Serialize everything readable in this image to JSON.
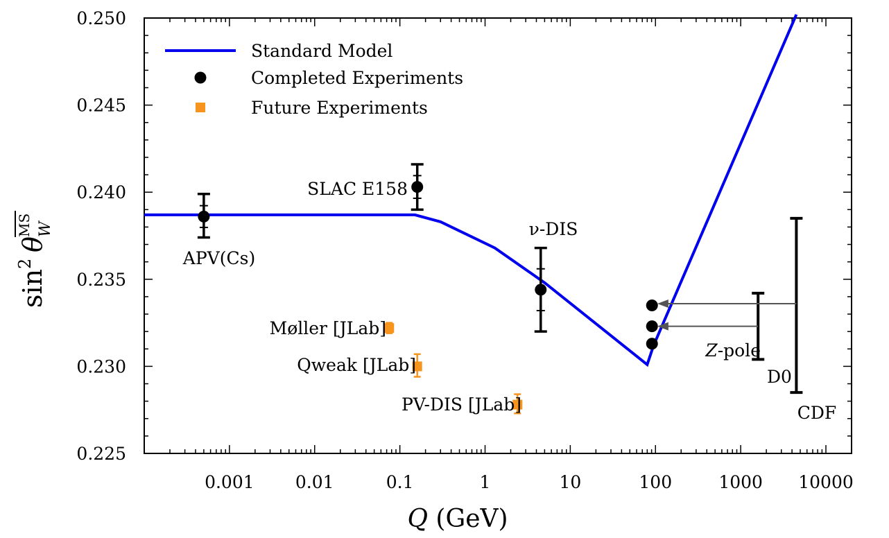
{
  "chart_data": {
    "type": "scatter",
    "xscale": "log",
    "xlim": [
      0.0001,
      20000
    ],
    "ylim": [
      0.225,
      0.25
    ],
    "grid": false,
    "legend_placement": "top-left",
    "xlabel": {
      "var": "Q",
      "unit": "(GeV)"
    },
    "ylabel": {
      "main": "sin",
      "sup": "2",
      "theta": "θ",
      "sub": "W",
      "scheme": "MS"
    },
    "xticks": [
      {
        "value": 0.001,
        "label": "0.001"
      },
      {
        "value": 0.01,
        "label": "0.01"
      },
      {
        "value": 0.1,
        "label": "0.1"
      },
      {
        "value": 1,
        "label": "1"
      },
      {
        "value": 10,
        "label": "10"
      },
      {
        "value": 100,
        "label": "100"
      },
      {
        "value": 1000,
        "label": "1000"
      },
      {
        "value": 10000,
        "label": "10000"
      }
    ],
    "yticks": [
      {
        "value": 0.225,
        "label": "0.225"
      },
      {
        "value": 0.23,
        "label": "0.230"
      },
      {
        "value": 0.235,
        "label": "0.235"
      },
      {
        "value": 0.24,
        "label": "0.240"
      },
      {
        "value": 0.245,
        "label": "0.245"
      },
      {
        "value": 0.25,
        "label": "0.250"
      }
    ],
    "legend": [
      {
        "label": "Standard Model",
        "kind": "line",
        "color": "#0000ee"
      },
      {
        "label": "Completed Experiments",
        "kind": "dot",
        "color": "#000000"
      },
      {
        "label": "Future Experiments",
        "kind": "square",
        "color": "#f7941d"
      }
    ],
    "standard_model": {
      "name": "Standard Model",
      "color": "#0000ee",
      "x": [
        0.0001,
        0.15,
        0.3,
        1.3,
        5,
        80,
        95,
        4500
      ],
      "y": [
        0.2387,
        0.2387,
        0.2383,
        0.2368,
        0.2348,
        0.2301,
        0.2312,
        0.2502
      ]
    },
    "completed": [
      {
        "name": "APV(Cs)",
        "x": 0.0005,
        "y": 0.2386,
        "ylo": 0.2374,
        "yhi": 0.2399
      },
      {
        "name": "SLAC E158",
        "x": 0.16,
        "y": 0.2403,
        "ylo": 0.239,
        "yhi": 0.2416
      },
      {
        "name": "ν-DIS",
        "x": 4.5,
        "y": 0.2344,
        "ylo": 0.232,
        "yhi": 0.2368
      },
      {
        "name": "Z-pole",
        "x": 91,
        "y": 0.2335
      },
      {
        "name": "Z-pole",
        "x": 91,
        "y": 0.2323
      },
      {
        "name": "Z-pole",
        "x": 91,
        "y": 0.2313
      }
    ],
    "future": [
      {
        "name": "Møller [JLab]",
        "x": 0.075,
        "y": 0.2322,
        "ylo": 0.2319,
        "yhi": 0.2325
      },
      {
        "name": "Qweak [JLab]",
        "x": 0.16,
        "y": 0.23,
        "ylo": 0.2294,
        "yhi": 0.2307
      },
      {
        "name": "PV-DIS [JLab]",
        "x": 2.4,
        "y": 0.2278,
        "ylo": 0.2273,
        "yhi": 0.2284
      }
    ],
    "hadron_colliders": [
      {
        "name": "D0",
        "x": 1600,
        "ylo": 0.2304,
        "yhi": 0.2342
      },
      {
        "name": "CDF",
        "x": 4500,
        "ylo": 0.2285,
        "yhi": 0.2385
      }
    ],
    "arrows": [
      {
        "from_x": 4500,
        "to_x": 105,
        "y": 0.2336
      },
      {
        "from_x": 1600,
        "to_x": 105,
        "y": 0.2323
      }
    ],
    "annotations": [
      {
        "text": "APV(Cs)",
        "target": "APV(Cs)"
      },
      {
        "text": "SLAC E158",
        "target": "SLAC E158"
      },
      {
        "text": "ν-DIS",
        "target": "ν-DIS"
      },
      {
        "text": "Møller [JLab]",
        "target": "Møller [JLab]"
      },
      {
        "text": "Qweak [JLab]",
        "target": "Qweak [JLab]"
      },
      {
        "text": "PV-DIS [JLab]",
        "target": "PV-DIS [JLab]"
      },
      {
        "text": "-pole",
        "italic_prefix": "Z",
        "target": "Z-pole"
      },
      {
        "text": "D0",
        "target": "D0"
      },
      {
        "text": "CDF",
        "target": "CDF"
      }
    ]
  }
}
